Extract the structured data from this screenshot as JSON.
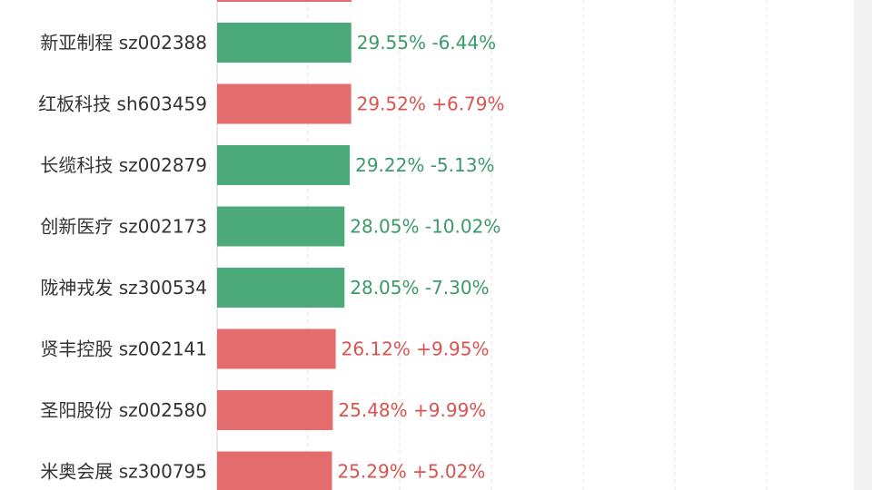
{
  "colors": {
    "up": "#e46c6c",
    "down": "#4caa7a",
    "up_text": "#d9534f",
    "down_text": "#3a9a6a",
    "grid": "#e6e6e6"
  },
  "chart_data": {
    "type": "bar",
    "orientation": "horizontal",
    "title": "",
    "xlabel": "",
    "ylabel": "",
    "grid": true,
    "categories": [
      "新亚制程 sz002388",
      "红板科技 sh603459",
      "长缆科技 sz002879",
      "创新医疗 sz002173",
      "陇神戎发 sz300534",
      "贤丰控股 sz002141",
      "圣阳股份 sz002580",
      "米奥会展 sz300795"
    ],
    "values": [
      29.55,
      29.52,
      29.22,
      28.05,
      28.05,
      26.12,
      25.48,
      25.29
    ],
    "value_labels": [
      "29.55%",
      "29.52%",
      "29.22%",
      "28.05%",
      "28.05%",
      "26.12%",
      "25.48%",
      "25.29%"
    ],
    "changes": [
      -6.44,
      6.79,
      -5.13,
      -10.02,
      -7.3,
      9.95,
      9.99,
      5.02
    ],
    "change_labels": [
      "-6.44%",
      "+6.79%",
      "-5.13%",
      "-10.02%",
      "-7.30%",
      "+9.95%",
      "+9.99%",
      "+5.02%"
    ],
    "partial_top_bar": {
      "direction": "up"
    }
  }
}
